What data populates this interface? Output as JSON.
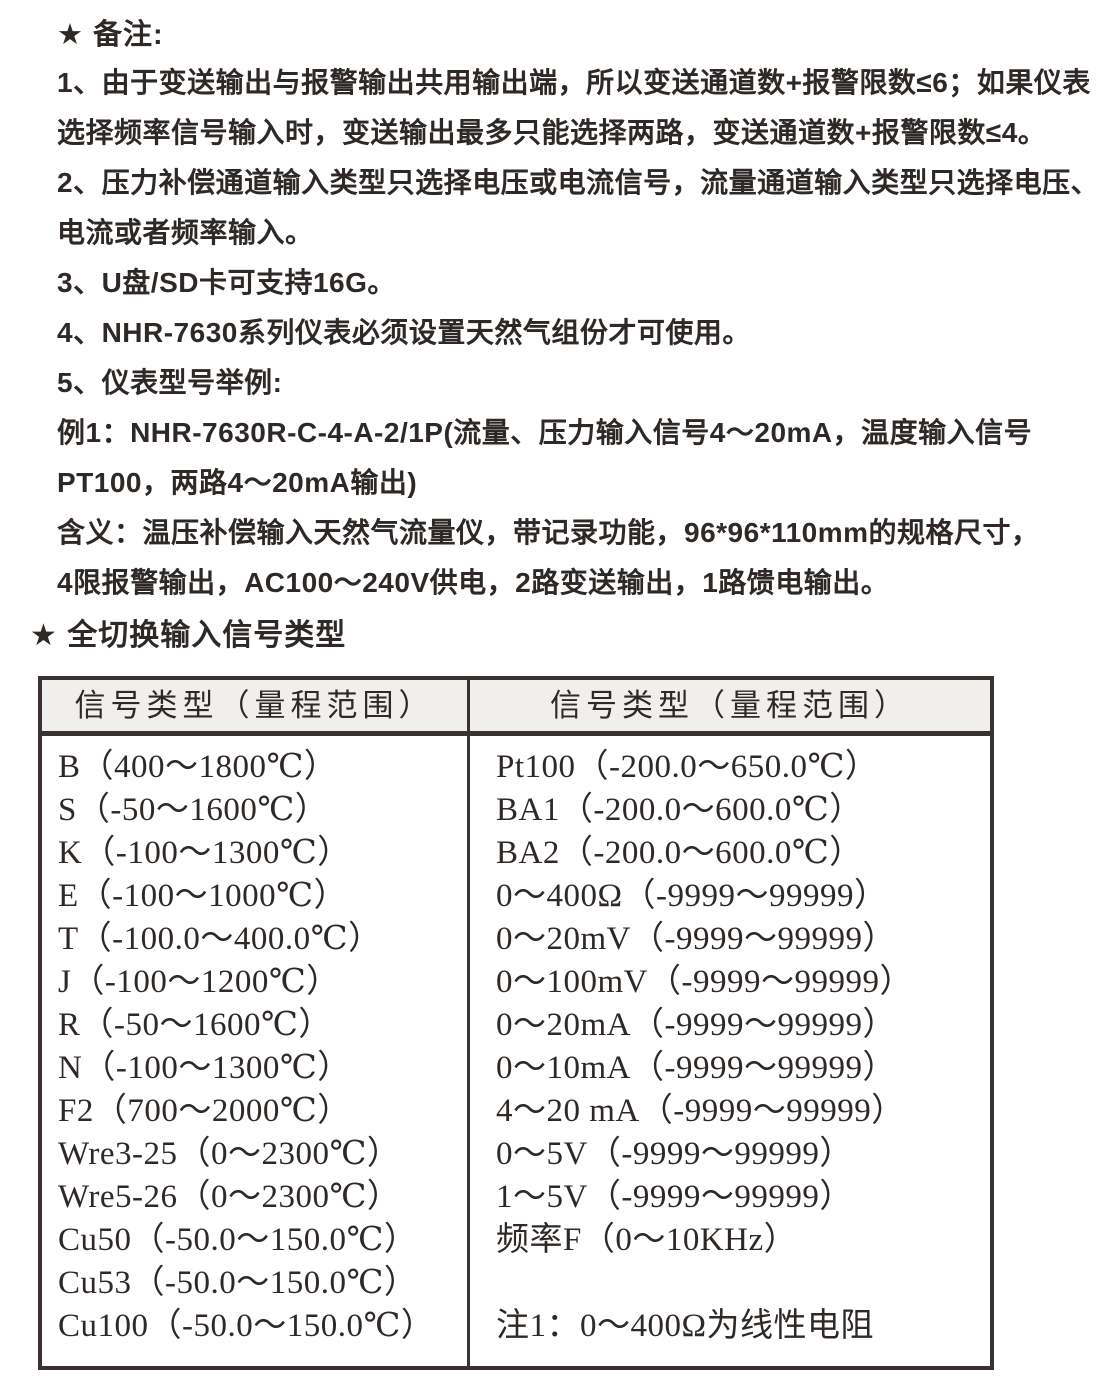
{
  "page": {
    "text_color": "#2e2926",
    "border_color": "#3a3134",
    "table_header_bg": "#f1efec",
    "star_icon": "★"
  },
  "notes": {
    "title": "★ 备注:",
    "lines": [
      "1、由于变送输出与报警输出共用输出端，所以变送通道数+报警限数≤6；如果仪表",
      "选择频率信号输入时，变送输出最多只能选择两路，变送通道数+报警限数≤4。",
      "2、压力补偿通道输入类型只选择电压或电流信号，流量通道输入类型只选择电压、",
      "电流或者频率输入。",
      "3、U盘/SD卡可支持16G。",
      "4、NHR-7630系列仪表必须设置天然气组份才可使用。",
      "5、仪表型号举例:",
      "例1：NHR-7630R-C-4-A-2/1P(流量、压力输入信号4～20mA，温度输入信号",
      "PT100，两路4～20mA输出)",
      "含义：温压补偿输入天然气流量仪，带记录功能，96*96*110mm的规格尺寸，",
      "4限报警输出，AC100～240V供电，2路变送输出，1路馈电输出。"
    ]
  },
  "section": {
    "title": "★ 全切换输入信号类型"
  },
  "signal_table": {
    "headers": [
      "信号类型（量程范围）",
      "信号类型（量程范围）"
    ],
    "left_column": [
      "B（400～1800℃）",
      "S（-50～1600℃）",
      "K（-100～1300℃）",
      "E（-100～1000℃）",
      "T（-100.0～400.0℃）",
      "J（-100～1200℃）",
      "R（-50～1600℃）",
      "N（-100～1300℃）",
      "F2（700～2000℃）",
      "Wre3-25（0～2300℃）",
      "Wre5-26（0～2300℃）",
      "Cu50（-50.0～150.0℃）",
      "Cu53（-50.0～150.0℃）",
      "Cu100（-50.0～150.0℃）"
    ],
    "right_column": [
      "Pt100（-200.0～650.0℃）",
      "BA1（-200.0～600.0℃）",
      "BA2（-200.0～600.0℃）",
      "0～400Ω（-9999～99999）",
      "0～20mV（-9999～99999）",
      "0～100mV（-9999～99999）",
      "0～20mA（-9999～99999）",
      "0～10mA（-9999～99999）",
      "4～20 mA（-9999～99999）",
      "0～5V（-9999～99999）",
      "1～5V（-9999～99999）",
      "频率F（0～10KHz）",
      "",
      "注1：0～400Ω为线性电阻"
    ]
  }
}
